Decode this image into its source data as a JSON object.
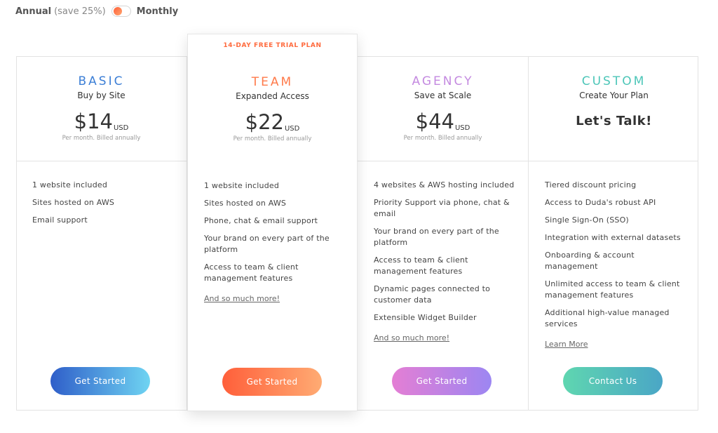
{
  "billing_toggle": {
    "annual": "Annual",
    "save": "(save 25%)",
    "monthly": "Monthly"
  },
  "plans": [
    {
      "name": "BASIC",
      "subtitle": "Buy by Site",
      "price": "$14",
      "currency": "USD",
      "billing": "Per month. Billed annually",
      "features": [
        "1 website included",
        "Sites hosted on AWS",
        "Email support"
      ],
      "more": "",
      "cta": "Get Started",
      "name_color": "#3d7fd6"
    },
    {
      "badge": "14-DAY FREE TRIAL PLAN",
      "name": "TEAM",
      "subtitle": "Expanded Access",
      "price": "$22",
      "currency": "USD",
      "billing": "Per month. Billed annually",
      "features": [
        "1 website included",
        "Sites hosted on AWS",
        "Phone, chat & email support",
        "Your brand on every part of the platform",
        "Access to team & client management features"
      ],
      "more": "And so much more!",
      "cta": "Get Started",
      "name_color": "#ff7a4a"
    },
    {
      "name": "AGENCY",
      "subtitle": "Save at Scale",
      "price": "$44",
      "currency": "USD",
      "billing": "Per month. Billed annually",
      "features": [
        "4 websites & AWS hosting included",
        "Priority Support via phone, chat & email",
        "Your brand on every part of the platform",
        "Access to team & client management features",
        "Dynamic pages connected to customer data",
        "Extensible Widget Builder"
      ],
      "more": "And so much more!",
      "cta": "Get Started",
      "name_color": "#c48ae0"
    },
    {
      "name": "CUSTOM",
      "subtitle": "Create Your Plan",
      "headline": "Let's Talk!",
      "features": [
        "Tiered discount pricing",
        "Access to Duda's robust API",
        "Single Sign-On (SSO)",
        "Integration with external datasets",
        "Onboarding & account management",
        "Unlimited access to team & client management features",
        "Additional high-value managed services"
      ],
      "more": "Learn More",
      "cta": "Contact Us",
      "name_color": "#4cc6b8"
    }
  ]
}
